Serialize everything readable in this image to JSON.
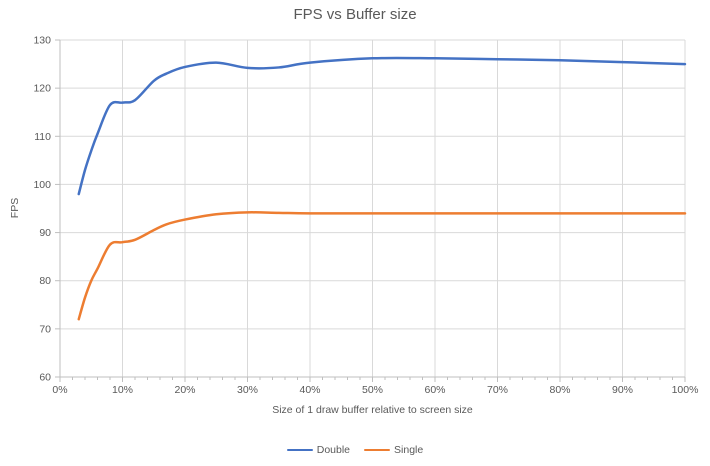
{
  "chart_data": {
    "type": "line",
    "title": "FPS vs Buffer size",
    "xlabel": "Size of 1 draw buffer relative to screen size",
    "ylabel": "FPS",
    "xlim": [
      0,
      100
    ],
    "ylim": [
      60,
      130
    ],
    "grid": true,
    "legend_position": "bottom-center",
    "x_tick_values": [
      0,
      10,
      20,
      30,
      40,
      50,
      60,
      70,
      80,
      90,
      100
    ],
    "x_tick_labels": [
      "0%",
      "10%",
      "20%",
      "30%",
      "40%",
      "50%",
      "60%",
      "70%",
      "80%",
      "90%",
      "100%"
    ],
    "x_minor_tick_step": 2,
    "y_tick_values": [
      60,
      70,
      80,
      90,
      100,
      110,
      120,
      130
    ],
    "y_tick_labels": [
      "60",
      "70",
      "80",
      "90",
      "100",
      "110",
      "120",
      "130"
    ],
    "series": [
      {
        "name": "Double",
        "color": "#4472C4",
        "x": [
          3,
          4,
          5,
          6,
          8,
          10,
          12,
          15,
          17,
          20,
          25,
          30,
          35,
          40,
          50,
          60,
          70,
          80,
          90,
          100
        ],
        "values": [
          98,
          103,
          107,
          110.5,
          116.5,
          117,
          117.5,
          121.5,
          123,
          124.4,
          125.3,
          124.2,
          124.3,
          125.3,
          126.2,
          126.2,
          126,
          125.8,
          125.4,
          125
        ]
      },
      {
        "name": "Single",
        "color": "#ED7D31",
        "x": [
          3,
          4,
          5,
          6,
          8,
          10,
          12,
          15,
          17,
          20,
          25,
          30,
          35,
          40,
          50,
          60,
          70,
          80,
          90,
          100
        ],
        "values": [
          72,
          76.5,
          80,
          82.5,
          87.5,
          88,
          88.5,
          90.5,
          91.7,
          92.7,
          93.8,
          94.2,
          94.1,
          94,
          94,
          94,
          94,
          94,
          94,
          94
        ]
      }
    ]
  },
  "colors": {
    "gridline": "#D9D9D9",
    "axis_line": "#BFBFBF",
    "text": "#595959",
    "background": "#FFFFFF"
  }
}
